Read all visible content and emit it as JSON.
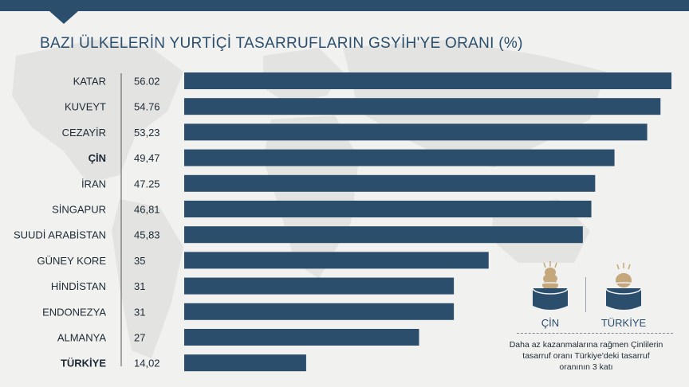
{
  "title": "BAZI ÜLKELERİN YURTİÇİ TASARRUFLARIN GSYİH'YE ORANI (%)",
  "chart_data": {
    "type": "bar",
    "orientation": "horizontal",
    "categories": [
      "KATAR",
      "KUVEYT",
      "CEZAYİR",
      "ÇİN",
      "İRAN",
      "SİNGAPUR",
      "SUUDİ ARABİSTAN",
      "GÜNEY KORE",
      "HİNDİSTAN",
      "ENDONEZYA",
      "ALMANYA",
      "TÜRKİYE"
    ],
    "values": [
      56.02,
      54.76,
      53.23,
      49.47,
      47.25,
      46.81,
      45.83,
      35,
      31,
      31,
      27,
      14.02
    ],
    "value_labels": [
      "56.02",
      "54.76",
      "53,23",
      "49,47",
      "47.25",
      "46,81",
      "45,83",
      "35",
      "31",
      "31",
      "27",
      "14,02"
    ],
    "highlighted": [
      "ÇİN",
      "TÜRKİYE"
    ],
    "bar_color": "#2a4e6c",
    "xlim": [
      0,
      56.02
    ],
    "grid": false
  },
  "comparison": {
    "left_label": "ÇİN",
    "right_label": "TÜRKİYE",
    "left_icon": "piggy-bank-coins-icon",
    "right_icon": "piggy-bank-coin-icon",
    "coin_color": "#c4a77a",
    "note": "Daha az kazanmalarına rağmen Çinlilerin tasarruf oranı Türkiye'deki tasarruf oranının 3 katı"
  }
}
